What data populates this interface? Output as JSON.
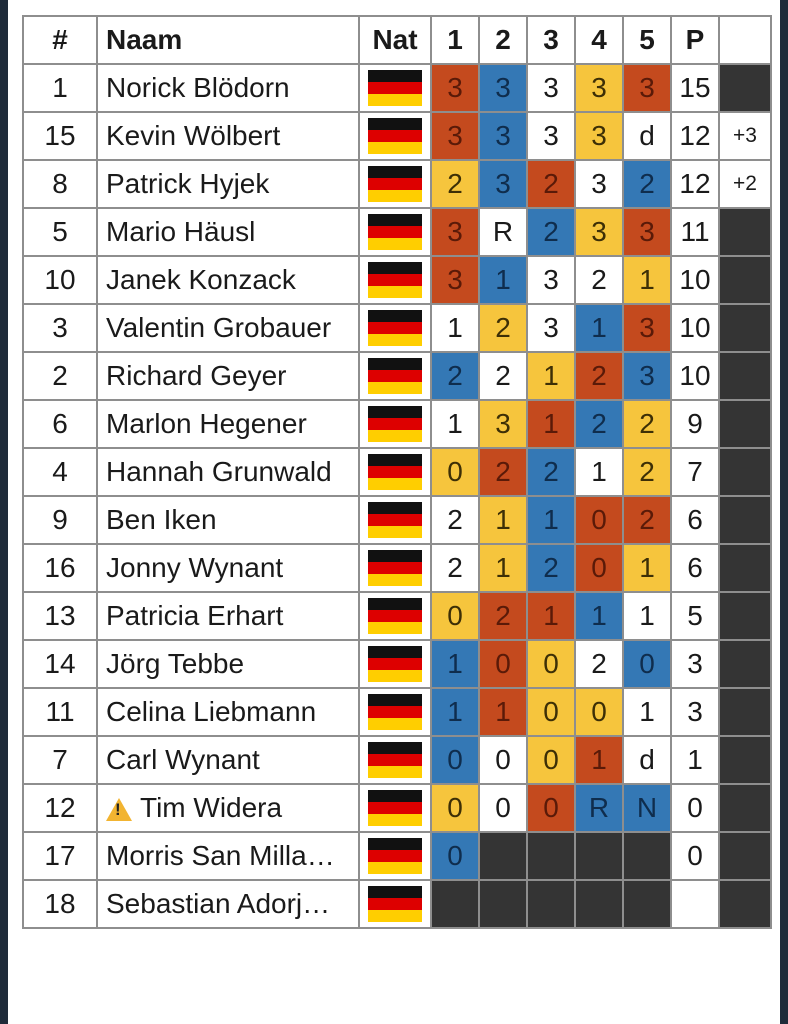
{
  "headers": {
    "rank": "#",
    "name": "Naam",
    "nat": "Nat",
    "r1": "1",
    "r2": "2",
    "r3": "3",
    "r4": "4",
    "r5": "5",
    "points": "P",
    "extra": ""
  },
  "colors": {
    "red": "#c44a1e",
    "blue": "#3478b5",
    "yellow": "#f6c53d",
    "white": "#ffffff",
    "dark": "#343434"
  },
  "rows": [
    {
      "rank": "1",
      "name": "Norick Blödorn",
      "nat": "germany-flag",
      "rounds": [
        {
          "v": "3",
          "c": "red"
        },
        {
          "v": "3",
          "c": "blue"
        },
        {
          "v": "3",
          "c": "white"
        },
        {
          "v": "3",
          "c": "yellow"
        },
        {
          "v": "3",
          "c": "red"
        }
      ],
      "points": "15",
      "extra": "",
      "extra_c": "dark"
    },
    {
      "rank": "15",
      "name": "Kevin Wölbert",
      "nat": "germany-flag",
      "rounds": [
        {
          "v": "3",
          "c": "red"
        },
        {
          "v": "3",
          "c": "blue"
        },
        {
          "v": "3",
          "c": "white"
        },
        {
          "v": "3",
          "c": "yellow"
        },
        {
          "v": "d",
          "c": "white"
        }
      ],
      "points": "12",
      "extra": "+3",
      "extra_c": "white"
    },
    {
      "rank": "8",
      "name": "Patrick Hyjek",
      "nat": "germany-flag",
      "rounds": [
        {
          "v": "2",
          "c": "yellow"
        },
        {
          "v": "3",
          "c": "blue"
        },
        {
          "v": "2",
          "c": "red"
        },
        {
          "v": "3",
          "c": "white"
        },
        {
          "v": "2",
          "c": "blue"
        }
      ],
      "points": "12",
      "extra": "+2",
      "extra_c": "white"
    },
    {
      "rank": "5",
      "name": "Mario Häusl",
      "nat": "germany-flag",
      "rounds": [
        {
          "v": "3",
          "c": "red"
        },
        {
          "v": "R",
          "c": "white"
        },
        {
          "v": "2",
          "c": "blue"
        },
        {
          "v": "3",
          "c": "yellow"
        },
        {
          "v": "3",
          "c": "red"
        }
      ],
      "points": "11",
      "extra": "",
      "extra_c": "dark"
    },
    {
      "rank": "10",
      "name": "Janek Konzack",
      "nat": "germany-flag",
      "rounds": [
        {
          "v": "3",
          "c": "red"
        },
        {
          "v": "1",
          "c": "blue"
        },
        {
          "v": "3",
          "c": "white"
        },
        {
          "v": "2",
          "c": "white"
        },
        {
          "v": "1",
          "c": "yellow"
        }
      ],
      "points": "10",
      "extra": "",
      "extra_c": "dark"
    },
    {
      "rank": "3",
      "name": "Valentin Grobauer",
      "nat": "germany-flag",
      "rounds": [
        {
          "v": "1",
          "c": "white"
        },
        {
          "v": "2",
          "c": "yellow"
        },
        {
          "v": "3",
          "c": "white"
        },
        {
          "v": "1",
          "c": "blue"
        },
        {
          "v": "3",
          "c": "red"
        }
      ],
      "points": "10",
      "extra": "",
      "extra_c": "dark"
    },
    {
      "rank": "2",
      "name": "Richard Geyer",
      "nat": "germany-flag",
      "rounds": [
        {
          "v": "2",
          "c": "blue"
        },
        {
          "v": "2",
          "c": "white"
        },
        {
          "v": "1",
          "c": "yellow"
        },
        {
          "v": "2",
          "c": "red"
        },
        {
          "v": "3",
          "c": "blue"
        }
      ],
      "points": "10",
      "extra": "",
      "extra_c": "dark"
    },
    {
      "rank": "6",
      "name": "Marlon Hegener",
      "nat": "germany-flag",
      "rounds": [
        {
          "v": "1",
          "c": "white"
        },
        {
          "v": "3",
          "c": "yellow"
        },
        {
          "v": "1",
          "c": "red"
        },
        {
          "v": "2",
          "c": "blue"
        },
        {
          "v": "2",
          "c": "yellow"
        }
      ],
      "points": "9",
      "extra": "",
      "extra_c": "dark"
    },
    {
      "rank": "4",
      "name": "Hannah Grunwald",
      "nat": "germany-flag",
      "rounds": [
        {
          "v": "0",
          "c": "yellow"
        },
        {
          "v": "2",
          "c": "red"
        },
        {
          "v": "2",
          "c": "blue"
        },
        {
          "v": "1",
          "c": "white"
        },
        {
          "v": "2",
          "c": "yellow"
        }
      ],
      "points": "7",
      "extra": "",
      "extra_c": "dark"
    },
    {
      "rank": "9",
      "name": "Ben Iken",
      "nat": "germany-flag",
      "rounds": [
        {
          "v": "2",
          "c": "white"
        },
        {
          "v": "1",
          "c": "yellow"
        },
        {
          "v": "1",
          "c": "blue"
        },
        {
          "v": "0",
          "c": "red"
        },
        {
          "v": "2",
          "c": "red"
        }
      ],
      "points": "6",
      "extra": "",
      "extra_c": "dark"
    },
    {
      "rank": "16",
      "name": "Jonny Wynant",
      "nat": "germany-flag",
      "rounds": [
        {
          "v": "2",
          "c": "white"
        },
        {
          "v": "1",
          "c": "yellow"
        },
        {
          "v": "2",
          "c": "blue"
        },
        {
          "v": "0",
          "c": "red"
        },
        {
          "v": "1",
          "c": "yellow"
        }
      ],
      "points": "6",
      "extra": "",
      "extra_c": "dark"
    },
    {
      "rank": "13",
      "name": "Patricia Erhart",
      "nat": "germany-flag",
      "rounds": [
        {
          "v": "0",
          "c": "yellow"
        },
        {
          "v": "2",
          "c": "red"
        },
        {
          "v": "1",
          "c": "red"
        },
        {
          "v": "1",
          "c": "blue"
        },
        {
          "v": "1",
          "c": "white"
        }
      ],
      "points": "5",
      "extra": "",
      "extra_c": "dark"
    },
    {
      "rank": "14",
      "name": "Jörg Tebbe",
      "nat": "germany-flag",
      "rounds": [
        {
          "v": "1",
          "c": "blue"
        },
        {
          "v": "0",
          "c": "red"
        },
        {
          "v": "0",
          "c": "yellow"
        },
        {
          "v": "2",
          "c": "white"
        },
        {
          "v": "0",
          "c": "blue"
        }
      ],
      "points": "3",
      "extra": "",
      "extra_c": "dark"
    },
    {
      "rank": "11",
      "name": "Celina Liebmann",
      "nat": "germany-flag",
      "rounds": [
        {
          "v": "1",
          "c": "blue"
        },
        {
          "v": "1",
          "c": "red"
        },
        {
          "v": "0",
          "c": "yellow"
        },
        {
          "v": "0",
          "c": "yellow"
        },
        {
          "v": "1",
          "c": "white"
        }
      ],
      "points": "3",
      "extra": "",
      "extra_c": "dark"
    },
    {
      "rank": "7",
      "name": "Carl Wynant",
      "nat": "germany-flag",
      "rounds": [
        {
          "v": "0",
          "c": "blue"
        },
        {
          "v": "0",
          "c": "white"
        },
        {
          "v": "0",
          "c": "yellow"
        },
        {
          "v": "1",
          "c": "red"
        },
        {
          "v": "d",
          "c": "white"
        }
      ],
      "points": "1",
      "extra": "",
      "extra_c": "dark"
    },
    {
      "rank": "12",
      "name": "Tim Widera",
      "warn": "warning-icon",
      "nat": "germany-flag",
      "rounds": [
        {
          "v": "0",
          "c": "yellow"
        },
        {
          "v": "0",
          "c": "white"
        },
        {
          "v": "0",
          "c": "red"
        },
        {
          "v": "R",
          "c": "blue"
        },
        {
          "v": "N",
          "c": "blue"
        }
      ],
      "points": "0",
      "extra": "",
      "extra_c": "dark"
    },
    {
      "rank": "17",
      "name": "Morris San Milla…",
      "nat": "germany-flag",
      "rounds": [
        {
          "v": "0",
          "c": "blue"
        },
        {
          "v": "",
          "c": "dark"
        },
        {
          "v": "",
          "c": "dark"
        },
        {
          "v": "",
          "c": "dark"
        },
        {
          "v": "",
          "c": "dark"
        }
      ],
      "points": "0",
      "extra": "",
      "extra_c": "dark"
    },
    {
      "rank": "18",
      "name": "Sebastian Adorj…",
      "nat": "germany-flag",
      "rounds": [
        {
          "v": "",
          "c": "dark"
        },
        {
          "v": "",
          "c": "dark"
        },
        {
          "v": "",
          "c": "dark"
        },
        {
          "v": "",
          "c": "dark"
        },
        {
          "v": "",
          "c": "dark"
        }
      ],
      "points": "",
      "extra": "",
      "extra_c": "dark"
    }
  ]
}
